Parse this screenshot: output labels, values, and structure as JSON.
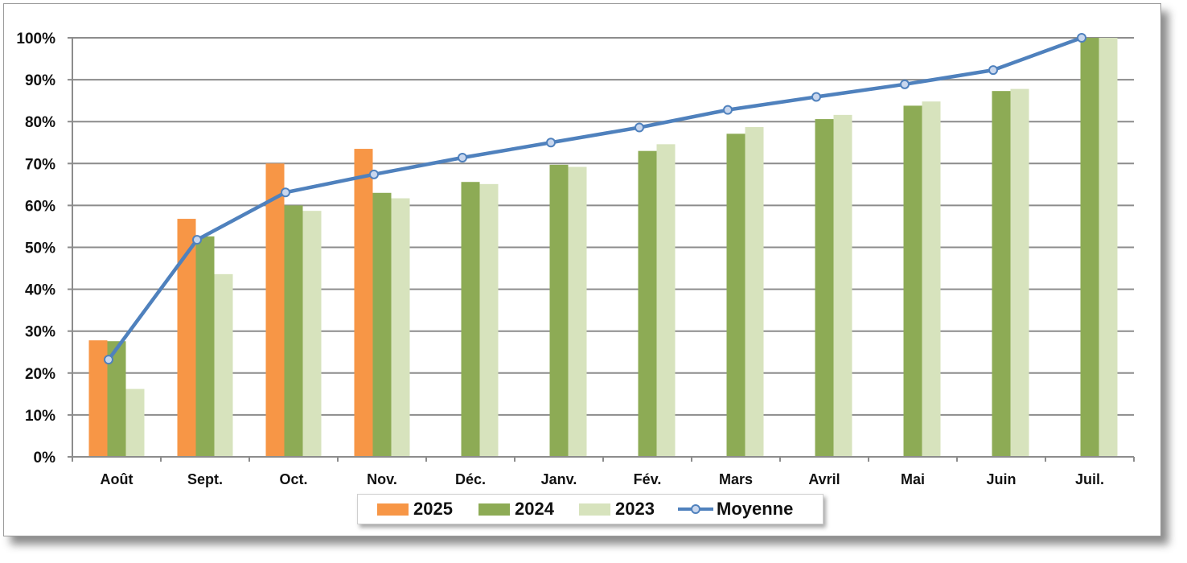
{
  "chart_data": {
    "type": "bar",
    "categories": [
      "Août",
      "Sept.",
      "Oct.",
      "Nov.",
      "Déc.",
      "Janv.",
      "Fév.",
      "Mars",
      "Avril",
      "Mai",
      "Juin",
      "Juil."
    ],
    "series": [
      {
        "name": "2025",
        "type": "bar",
        "color": "#f79646",
        "values": [
          27.8,
          56.8,
          70.0,
          73.5,
          null,
          null,
          null,
          null,
          null,
          null,
          null,
          null
        ]
      },
      {
        "name": "2024",
        "type": "bar",
        "color": "#8dab55",
        "values": [
          27.6,
          52.6,
          60.0,
          63.0,
          65.6,
          69.7,
          73.0,
          77.1,
          80.6,
          83.8,
          87.3,
          100.0
        ]
      },
      {
        "name": "2023",
        "type": "bar",
        "color": "#d7e3bd",
        "values": [
          16.2,
          43.6,
          58.7,
          61.7,
          65.1,
          69.2,
          74.6,
          78.7,
          81.6,
          84.8,
          87.8,
          100.0
        ]
      },
      {
        "name": "Moyenne",
        "type": "line",
        "color": "#4f81bd",
        "values": [
          23.2,
          51.8,
          63.1,
          67.4,
          71.4,
          75.0,
          78.6,
          82.8,
          85.9,
          88.9,
          92.3,
          100.0
        ]
      }
    ],
    "ylim": [
      0,
      100
    ],
    "yticks": [
      "0%",
      "10%",
      "20%",
      "30%",
      "40%",
      "50%",
      "60%",
      "70%",
      "80%",
      "90%",
      "100%"
    ],
    "grid": true,
    "legend": "bottom"
  }
}
